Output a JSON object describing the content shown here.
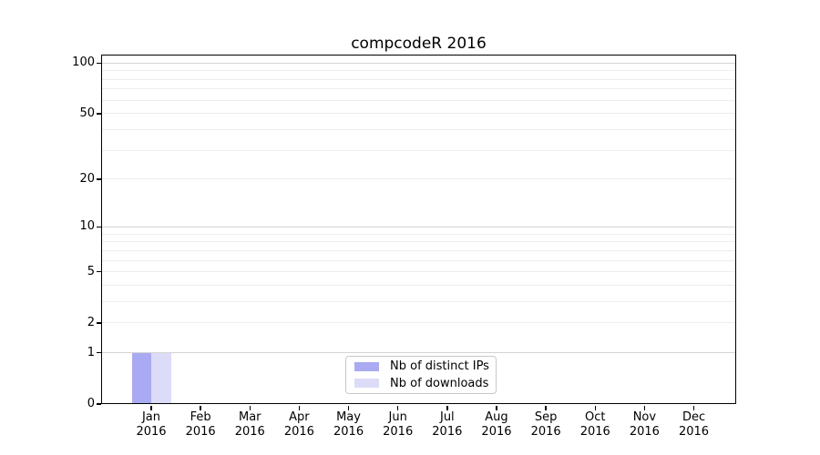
{
  "chart_data": {
    "type": "bar",
    "title": "compcodeR 2016",
    "categories": [
      {
        "month": "Jan",
        "year": "2016"
      },
      {
        "month": "Feb",
        "year": "2016"
      },
      {
        "month": "Mar",
        "year": "2016"
      },
      {
        "month": "Apr",
        "year": "2016"
      },
      {
        "month": "May",
        "year": "2016"
      },
      {
        "month": "Jun",
        "year": "2016"
      },
      {
        "month": "Jul",
        "year": "2016"
      },
      {
        "month": "Aug",
        "year": "2016"
      },
      {
        "month": "Sep",
        "year": "2016"
      },
      {
        "month": "Oct",
        "year": "2016"
      },
      {
        "month": "Nov",
        "year": "2016"
      },
      {
        "month": "Dec",
        "year": "2016"
      }
    ],
    "series": [
      {
        "name": "Nb of distinct IPs",
        "color": "#aaaaf2",
        "values": [
          1,
          0,
          0,
          0,
          0,
          0,
          0,
          0,
          0,
          0,
          0,
          0
        ]
      },
      {
        "name": "Nb of downloads",
        "color": "#dcdcf8",
        "values": [
          1,
          0,
          0,
          0,
          0,
          0,
          0,
          0,
          0,
          0,
          0,
          0
        ]
      }
    ],
    "ylabel": "",
    "xlabel": "",
    "yticks": [
      0,
      1,
      2,
      5,
      10,
      20,
      50,
      100
    ],
    "y_scale": "log10(1+x)",
    "ylim": [
      0,
      111
    ],
    "grid": {
      "minor_values": [
        2,
        3,
        4,
        5,
        6,
        7,
        8,
        9,
        20,
        30,
        40,
        50,
        60,
        70,
        80,
        90
      ],
      "major_values": [
        1,
        10,
        100
      ],
      "minor_color": "#ededed",
      "major_color": "#d4d4d4"
    },
    "legend_position": "lower-center-inside",
    "colors": {
      "spine": "#000000",
      "text": "#000000",
      "background": "#ffffff"
    }
  }
}
